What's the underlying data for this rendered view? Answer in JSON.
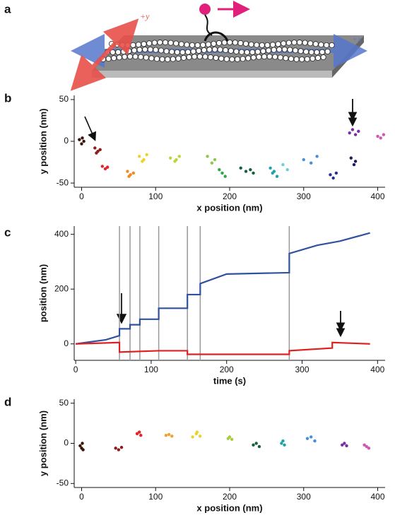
{
  "panel_labels": [
    "a",
    "b",
    "c",
    "d"
  ],
  "diagram": {
    "y_axis_label": "+y",
    "x_axis_label": "+x"
  },
  "chart_data": [
    {
      "type": "scatter",
      "xlabel": "x position (nm)",
      "ylabel": "y position (nm)",
      "xlim": [
        -10,
        410
      ],
      "ylim": [
        -55,
        55
      ],
      "xticks": [
        0,
        100,
        200,
        300,
        400
      ],
      "yticks": [
        -50,
        0,
        50
      ],
      "series": [
        {
          "color": "#3b1408",
          "x": [
            -3,
            0,
            3,
            1
          ],
          "values": [
            2,
            -3,
            0,
            4
          ]
        },
        {
          "color": "#8c1c1c",
          "x": [
            18,
            22,
            25,
            20
          ],
          "values": [
            -8,
            -12,
            -10,
            -14
          ]
        },
        {
          "color": "#e3242b",
          "x": [
            28,
            32,
            35
          ],
          "values": [
            -30,
            -33,
            -31
          ]
        },
        {
          "color": "#f08a24",
          "x": [
            62,
            66,
            70,
            64
          ],
          "values": [
            -36,
            -40,
            -38,
            -42
          ]
        },
        {
          "color": "#e8d42a",
          "x": [
            78,
            84,
            88,
            82
          ],
          "values": [
            -18,
            -22,
            -16,
            -24
          ]
        },
        {
          "color": "#bfd43a",
          "x": [
            120,
            126,
            132,
            128
          ],
          "values": [
            -20,
            -24,
            -18,
            -22
          ]
        },
        {
          "color": "#8cc84a",
          "x": [
            170,
            176,
            180
          ],
          "values": [
            -18,
            -26,
            -22
          ]
        },
        {
          "color": "#2ea84a",
          "x": [
            186,
            190,
            194
          ],
          "values": [
            -34,
            -38,
            -42
          ]
        },
        {
          "color": "#17603c",
          "x": [
            215,
            222,
            228,
            232
          ],
          "values": [
            -32,
            -36,
            -34,
            -38
          ]
        },
        {
          "color": "#1fa3a8",
          "x": [
            255,
            260,
            264,
            258
          ],
          "values": [
            -32,
            -36,
            -42,
            -38
          ]
        },
        {
          "color": "#6ccfd2",
          "x": [
            272,
            278
          ],
          "values": [
            -28,
            -34
          ]
        },
        {
          "color": "#4a8ed6",
          "x": [
            300,
            310,
            318
          ],
          "values": [
            -22,
            -26,
            -18
          ]
        },
        {
          "color": "#253090",
          "x": [
            336,
            340,
            344
          ],
          "values": [
            -40,
            -44,
            -38
          ]
        },
        {
          "color": "#1a1e5e",
          "x": [
            364,
            368,
            370
          ],
          "values": [
            -20,
            -28,
            -24
          ]
        },
        {
          "color": "#7a2ea6",
          "x": [
            362,
            366,
            370,
            374
          ],
          "values": [
            10,
            14,
            8,
            12
          ]
        },
        {
          "color": "#d055b5",
          "x": [
            400,
            404,
            408
          ],
          "values": [
            6,
            4,
            8
          ]
        }
      ]
    },
    {
      "type": "line",
      "xlabel": "time (s)",
      "ylabel": "position (nm)",
      "xlim": [
        -2,
        410
      ],
      "ylim": [
        -60,
        430
      ],
      "xticks": [
        0,
        100,
        200,
        300,
        400
      ],
      "yticks": [
        0,
        200,
        400
      ],
      "vlines": [
        58,
        72,
        85,
        110,
        148,
        165,
        283
      ],
      "vline_color": "#999999",
      "series": [
        {
          "color": "#3050a0",
          "x": [
            0,
            40,
            58,
            58,
            72,
            72,
            85,
            85,
            110,
            110,
            148,
            148,
            165,
            165,
            200,
            283,
            283,
            320,
            350,
            390
          ],
          "values": [
            0,
            15,
            30,
            55,
            55,
            70,
            70,
            90,
            90,
            130,
            130,
            180,
            180,
            220,
            255,
            260,
            330,
            360,
            375,
            405
          ]
        },
        {
          "color": "#e02020",
          "x": [
            0,
            58,
            58,
            110,
            148,
            148,
            283,
            283,
            340,
            340,
            390
          ],
          "values": [
            0,
            5,
            -30,
            -25,
            -25,
            -38,
            -38,
            -25,
            -15,
            5,
            0
          ]
        }
      ]
    },
    {
      "type": "scatter",
      "xlabel": "x position (nm)",
      "ylabel": "y position (nm)",
      "xlim": [
        -10,
        410
      ],
      "ylim": [
        -55,
        55
      ],
      "xticks": [
        0,
        100,
        200,
        300,
        400
      ],
      "yticks": [
        -50,
        0,
        50
      ],
      "series": [
        {
          "color": "#3b1408",
          "x": [
            -2,
            0,
            2,
            1
          ],
          "values": [
            -3,
            -6,
            -8,
            0
          ]
        },
        {
          "color": "#8c1c1c",
          "x": [
            46,
            50,
            54
          ],
          "values": [
            -6,
            -8,
            -5
          ]
        },
        {
          "color": "#e3242b",
          "x": [
            75,
            78,
            80
          ],
          "values": [
            12,
            14,
            10
          ]
        },
        {
          "color": "#f0a030",
          "x": [
            114,
            118,
            122
          ],
          "values": [
            10,
            11,
            9
          ]
        },
        {
          "color": "#e8d42a",
          "x": [
            150,
            155,
            160,
            156
          ],
          "values": [
            8,
            12,
            9,
            14
          ]
        },
        {
          "color": "#a8cc40",
          "x": [
            198,
            200,
            203
          ],
          "values": [
            6,
            8,
            5
          ]
        },
        {
          "color": "#17603c",
          "x": [
            232,
            236,
            240
          ],
          "values": [
            -2,
            0,
            -4
          ]
        },
        {
          "color": "#1fa3a8",
          "x": [
            270,
            272,
            274
          ],
          "values": [
            0,
            3,
            -2
          ]
        },
        {
          "color": "#4a8ed6",
          "x": [
            305,
            310,
            315
          ],
          "values": [
            6,
            8,
            3
          ]
        },
        {
          "color": "#7a2ea6",
          "x": [
            352,
            355,
            358
          ],
          "values": [
            -2,
            0,
            -3
          ]
        },
        {
          "color": "#d055b5",
          "x": [
            382,
            385,
            388
          ],
          "values": [
            -2,
            -4,
            -6
          ]
        }
      ]
    }
  ]
}
